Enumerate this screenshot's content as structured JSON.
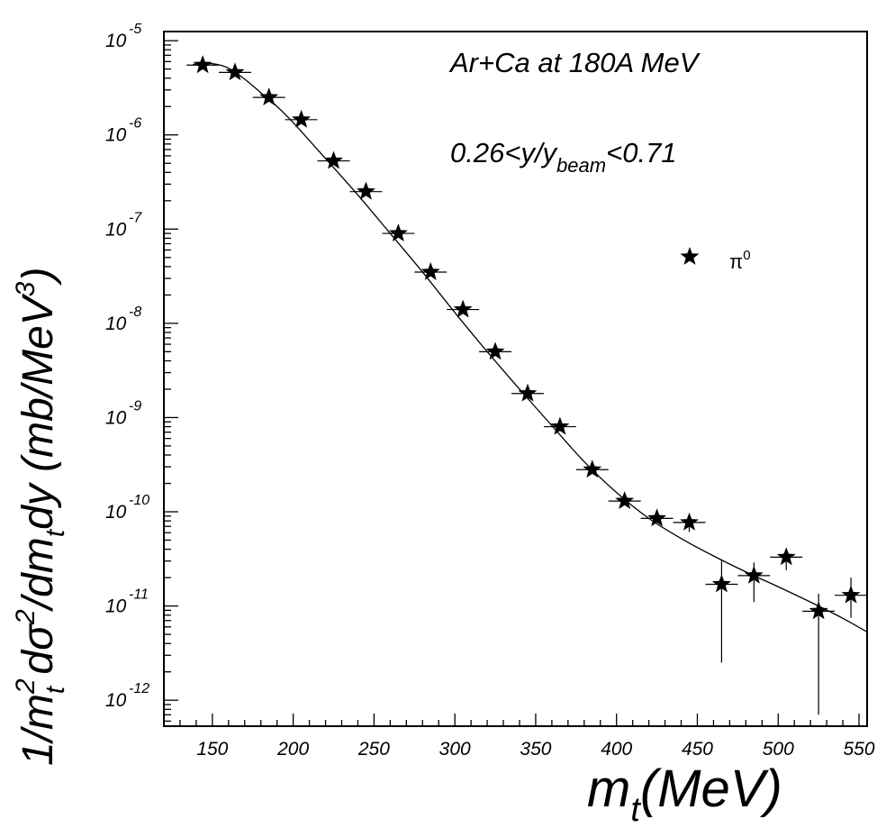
{
  "chart_data": {
    "type": "scatter",
    "annotations": {
      "system": "Ar+Ca at 180A MeV",
      "rapidity_prefix": "0.26<y/y",
      "rapidity_sub": "beam",
      "rapidity_suffix": "<0.71"
    },
    "xlabel": {
      "base": "m",
      "sub": "t",
      "rest": "(MeV)"
    },
    "ylabel": {
      "p1": "1/m",
      "p1_sup": "2",
      "p1_sub": "t",
      "p2": " dσ",
      "p2_sup": "2",
      "p3": "/dm",
      "p3_sub": "t",
      "p4": "dy (mb/MeV",
      "p4_sup": "3",
      "p5": ")"
    },
    "xlim": [
      120,
      555
    ],
    "ylim": [
      5.3e-13,
      1.25e-05
    ],
    "y_scale": "log",
    "x_ticks": [
      150,
      200,
      250,
      300,
      350,
      400,
      450,
      500,
      550
    ],
    "y_ticks": [
      {
        "value": 1e-05,
        "base": "10",
        "exp": "-5"
      },
      {
        "value": 1e-06,
        "base": "10",
        "exp": "-6"
      },
      {
        "value": 1e-07,
        "base": "10",
        "exp": "-7"
      },
      {
        "value": 1e-08,
        "base": "10",
        "exp": "-8"
      },
      {
        "value": 1e-09,
        "base": "10",
        "exp": "-9"
      },
      {
        "value": 1e-10,
        "base": "10",
        "exp": "-10"
      },
      {
        "value": 1e-11,
        "base": "10",
        "exp": "-11"
      },
      {
        "value": 1e-12,
        "base": "10",
        "exp": "-12"
      }
    ],
    "series": [
      {
        "name": "π",
        "name_sup": "0",
        "marker": "star",
        "x_halfwidth": 10,
        "points": [
          {
            "x": 144,
            "y": 5.5e-06
          },
          {
            "x": 164,
            "y": 4.6e-06
          },
          {
            "x": 185,
            "y": 2.5e-06
          },
          {
            "x": 205,
            "y": 1.45e-06
          },
          {
            "x": 225,
            "y": 5.3e-07
          },
          {
            "x": 245,
            "y": 2.5e-07
          },
          {
            "x": 265,
            "y": 9e-08
          },
          {
            "x": 285,
            "y": 3.5e-08
          },
          {
            "x": 305,
            "y": 1.4e-08
          },
          {
            "x": 325,
            "y": 5e-09
          },
          {
            "x": 345,
            "y": 1.8e-09
          },
          {
            "x": 365,
            "y": 8e-10
          },
          {
            "x": 385,
            "y": 2.8e-10
          },
          {
            "x": 405,
            "y": 1.3e-10
          },
          {
            "x": 425,
            "y": 8.5e-11
          },
          {
            "x": 445,
            "y": 7.7e-11,
            "err_lo": 6.1e-11,
            "err_hi": 9.3e-11
          },
          {
            "x": 465,
            "y": 1.7e-11,
            "err_lo": 2.5e-12,
            "err_hi": 3.1e-11
          },
          {
            "x": 485,
            "y": 2.1e-11,
            "err_lo": 1.1e-11,
            "err_hi": 2.9e-11
          },
          {
            "x": 505,
            "y": 3.3e-11,
            "err_lo": 2.4e-11,
            "err_hi": 4.1e-11
          },
          {
            "x": 525,
            "y": 8.8e-12,
            "err_lo": 7e-13,
            "err_hi": 1.35e-11
          },
          {
            "x": 545,
            "y": 1.3e-11,
            "err_lo": 7.5e-12,
            "err_hi": 2e-11
          }
        ]
      }
    ],
    "fit_curve": {
      "x": [
        138,
        150,
        160,
        170,
        180,
        190,
        200,
        220,
        240,
        260,
        280,
        300,
        320,
        340,
        360,
        380,
        400,
        420,
        440,
        460,
        480,
        500,
        520,
        540,
        555
      ],
      "y": [
        5.6e-06,
        5.7e-06,
        5.1e-06,
        3.9e-06,
        2.8e-06,
        2e-06,
        1.35e-06,
        5.6e-07,
        2.3e-07,
        9e-08,
        3.5e-08,
        1.3e-08,
        5e-09,
        2e-09,
        8.2e-10,
        3.4e-10,
        1.6e-10,
        8.5e-11,
        5.2e-11,
        3.4e-11,
        2.3e-11,
        1.6e-11,
        1.1e-11,
        7.4e-12,
        5.3e-12
      ]
    }
  }
}
